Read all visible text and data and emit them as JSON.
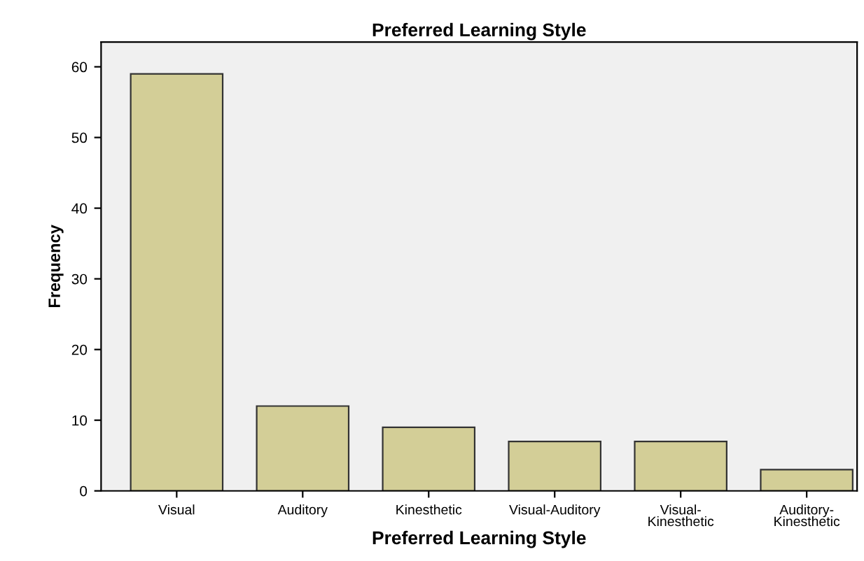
{
  "chart_data": {
    "type": "bar",
    "title": "Preferred Learning Style",
    "xlabel": "Preferred Learning Style",
    "ylabel": "Frequency",
    "categories": [
      "Visual",
      "Auditory",
      "Kinesthetic",
      "Visual-Auditory",
      "Visual-\nKinesthetic",
      "Auditory-\nKinesthetic"
    ],
    "values": [
      59,
      12,
      9,
      7,
      7,
      3
    ],
    "color": "#d3ce97",
    "ylim": [
      0,
      63.5
    ],
    "yticks": [
      0,
      10,
      20,
      30,
      40,
      50,
      60
    ],
    "grid": false
  }
}
